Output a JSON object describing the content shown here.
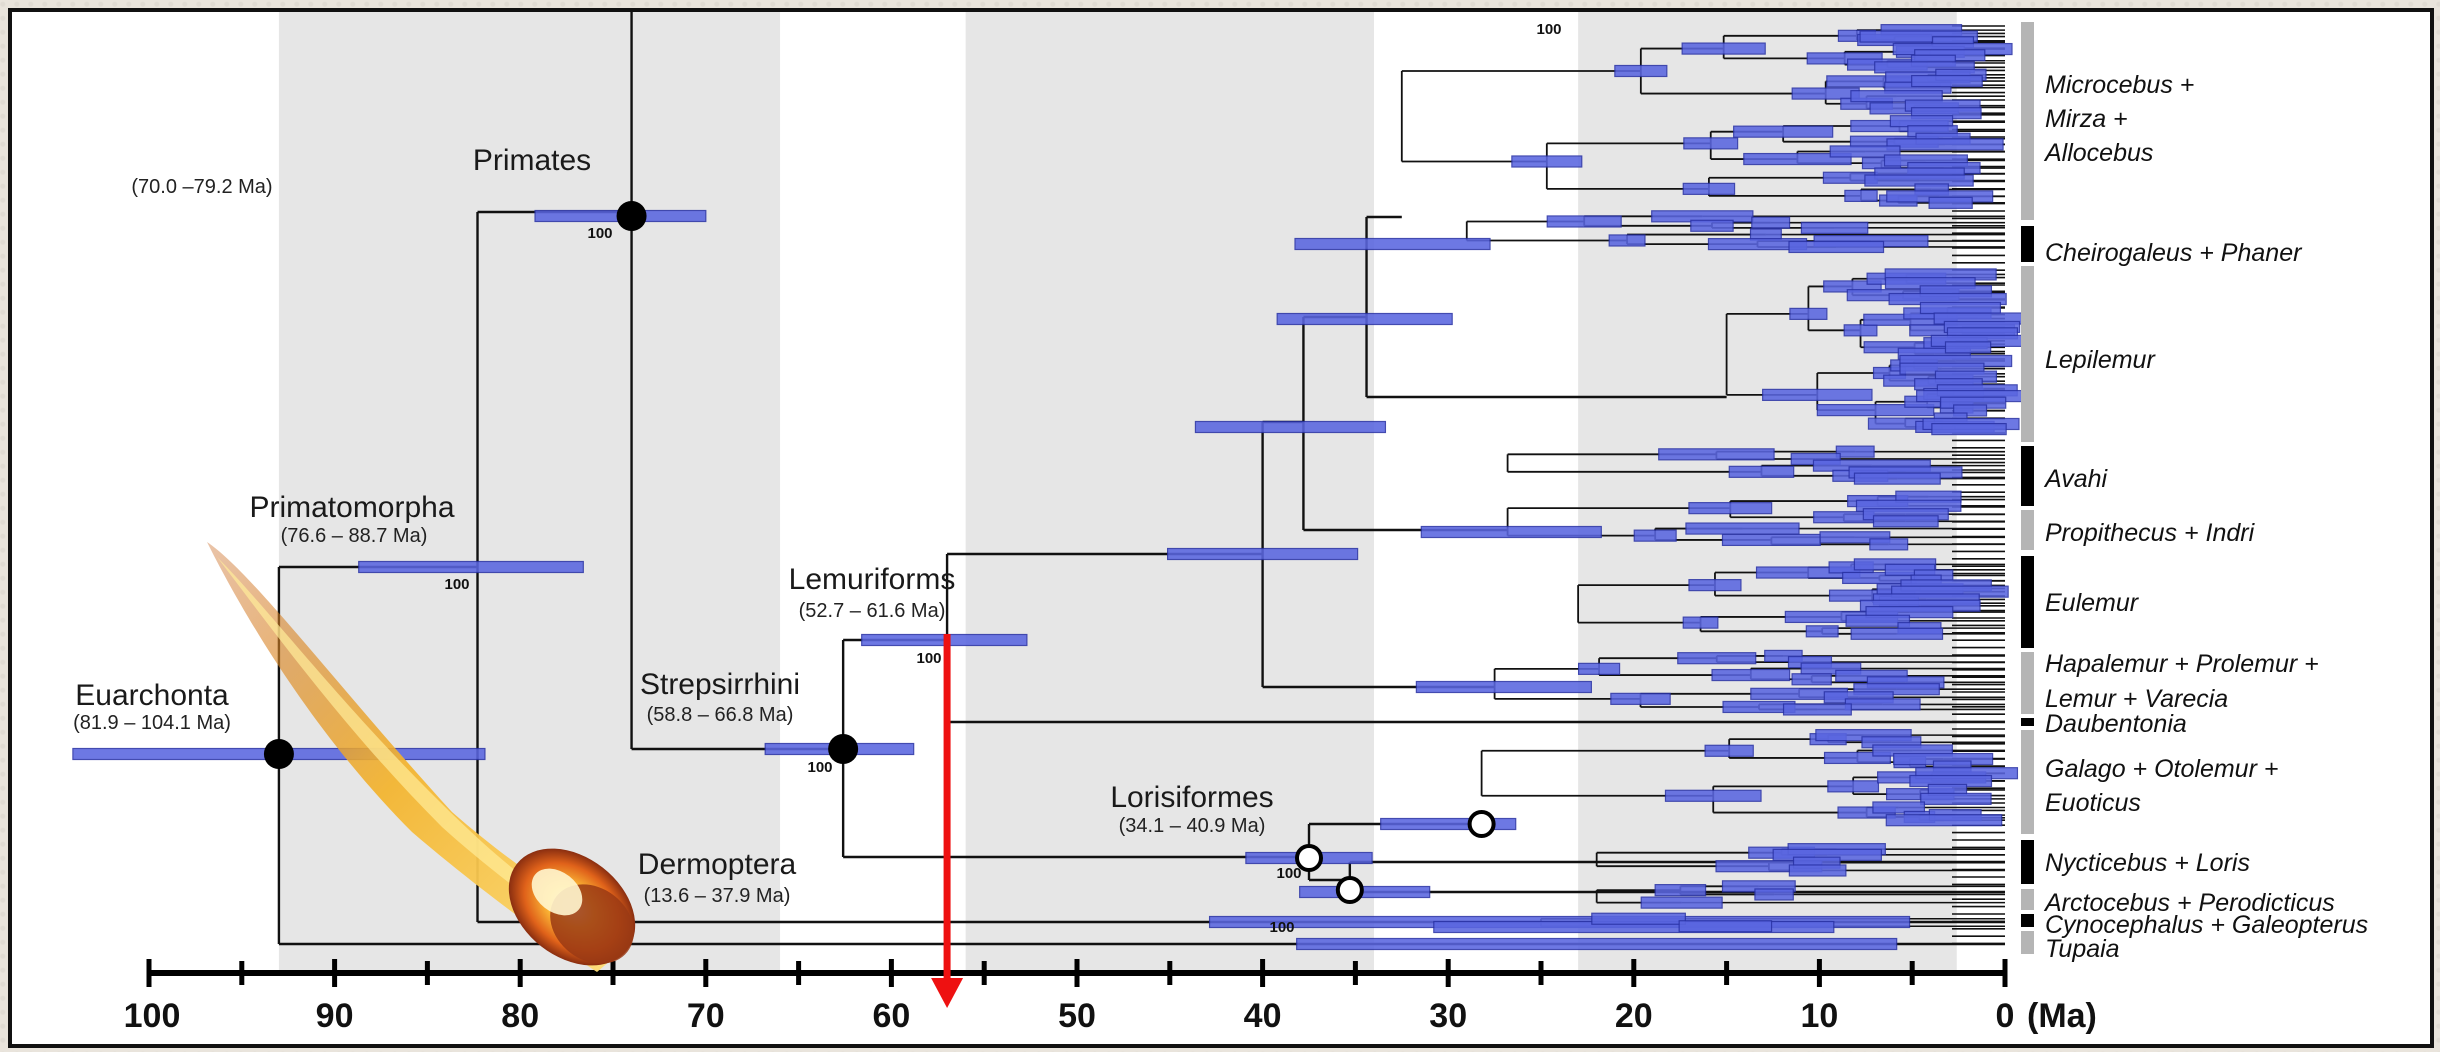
{
  "diagram": {
    "axis": {
      "unit": "(Ma)",
      "ticks": [
        100,
        90,
        80,
        70,
        60,
        50,
        40,
        30,
        20,
        10,
        0
      ],
      "shaded_bands": [
        [
          93,
          66
        ],
        [
          56,
          34
        ],
        [
          23,
          2.6
        ]
      ]
    },
    "nodes": [
      {
        "id": "primates",
        "name": "Primates",
        "range": "(70.0 –79.2 Ma)",
        "support": "100",
        "age": 74,
        "marker": "filled"
      },
      {
        "id": "primatomorpha",
        "name": "Primatomorpha",
        "range": "(76.6 – 88.7 Ma)",
        "support": "100",
        "age": 82.3,
        "marker": "none"
      },
      {
        "id": "euarchonta",
        "name": "Euarchonta",
        "range": "(81.9 – 104.1 Ma)",
        "support": "",
        "age": 93,
        "marker": "filled"
      },
      {
        "id": "strepsirrhini",
        "name": "Strepsirrhini",
        "range": "(58.8 – 66.8 Ma)",
        "support": "100",
        "age": 62.6,
        "marker": "filled"
      },
      {
        "id": "lemuriforms",
        "name": "Lemuriforms",
        "range": "(52.7 – 61.6 Ma)",
        "support": "100",
        "age": 57,
        "marker": "none"
      },
      {
        "id": "lorisiformes",
        "name": "Lorisiformes",
        "range": "(34.1 – 40.9 Ma)",
        "support": "100",
        "age": 37.5,
        "marker": "open"
      },
      {
        "id": "dermoptera",
        "name": "Dermoptera",
        "range": "(13.6 – 37.9 Ma)",
        "support": "100",
        "age": 24,
        "marker": "none"
      }
    ],
    "top_support": "100",
    "clades": [
      {
        "name": "Microcebus +\nMirza +\nAllocebus",
        "bar": "gray"
      },
      {
        "name": "Cheirogaleus + Phaner",
        "bar": "black"
      },
      {
        "name": "Lepilemur",
        "bar": "gray"
      },
      {
        "name": "Avahi",
        "bar": "black"
      },
      {
        "name": "Propithecus + Indri",
        "bar": "gray"
      },
      {
        "name": "Eulemur",
        "bar": "black"
      },
      {
        "name": "Hapalemur + Prolemur +\nLemur + Varecia",
        "bar": "gray"
      },
      {
        "name": "Daubentonia",
        "bar": "black"
      },
      {
        "name": "Galago + Otolemur +\nEuoticus",
        "bar": "gray"
      },
      {
        "name": "Nycticebus + Loris",
        "bar": "black"
      },
      {
        "name": "Arctocebus + Perodicticus",
        "bar": "gray"
      },
      {
        "name": "Cynocephalus + Galeopterus",
        "bar": "black"
      },
      {
        "name": "Tupaia",
        "bar": "gray"
      }
    ],
    "colors": {
      "band": "#e6e6e6",
      "ci_fill": "#5a66e0",
      "ci_stroke": "#2a33a6",
      "branch": "#111111",
      "arrow": "#ee1111",
      "clade_bar_gray": "#b5b5b5",
      "clade_bar_black": "#000000"
    },
    "annotation": {
      "arrow_at_ma": 57,
      "asteroid_icon": "asteroid-icon"
    }
  }
}
